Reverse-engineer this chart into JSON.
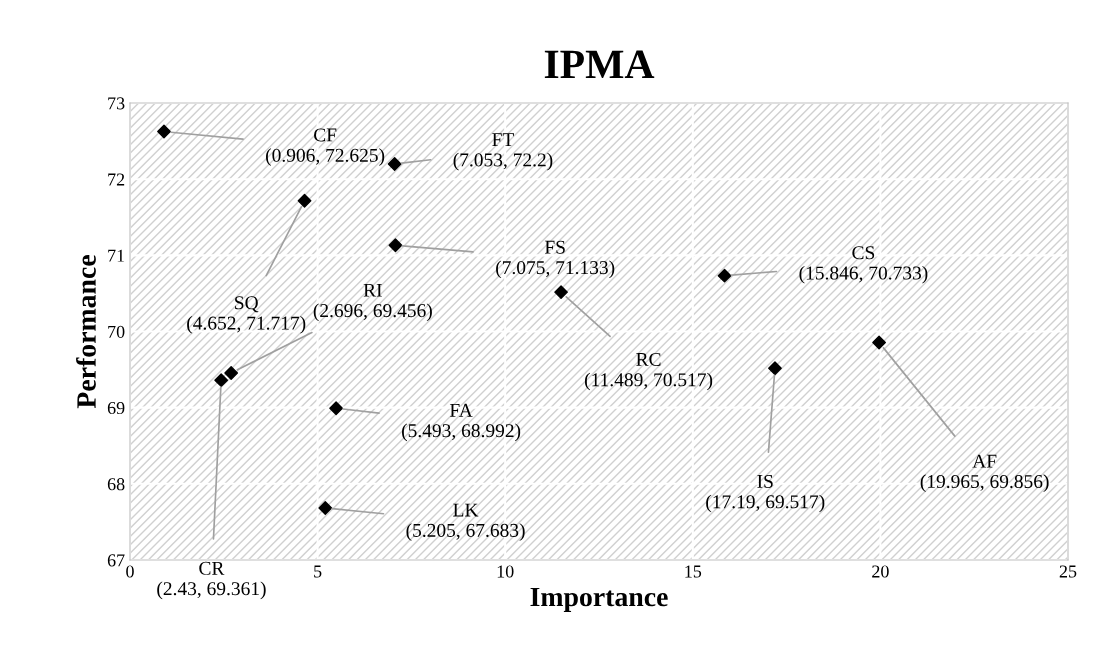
{
  "chart_data": {
    "type": "scatter",
    "title": "IPMA",
    "xlabel": "Importance",
    "ylabel": "Performance",
    "x": [
      0.906,
      7.053,
      4.652,
      7.075,
      15.846,
      11.489,
      2.696,
      2.43,
      5.493,
      17.19,
      19.965,
      5.205
    ],
    "series": [
      {
        "color": "#000000",
        "values": [
          72.625,
          72.2,
          71.717,
          71.133,
          70.733,
          70.517,
          69.456,
          69.361,
          68.992,
          69.517,
          69.856,
          67.683
        ]
      }
    ],
    "xlim": [
      0,
      25
    ],
    "xticks": [
      0,
      5,
      10,
      15,
      20,
      25
    ],
    "ylim": [
      67,
      73
    ],
    "yticks": [
      67,
      68,
      69,
      70,
      71,
      72,
      73
    ],
    "grid": true,
    "legend": false,
    "marker": "diamond",
    "annotations": [
      {
        "text": "CF\n(0.906, 72.625)",
        "x": 0.906,
        "y": 72.625
      },
      {
        "text": "FT\n(7.053, 72.2)",
        "x": 7.053,
        "y": 72.2
      },
      {
        "text": "SQ\n(4.652, 71.717)",
        "x": 4.652,
        "y": 71.717
      },
      {
        "text": "FS\n(7.075, 71.133)",
        "x": 7.075,
        "y": 71.133
      },
      {
        "text": "CS\n(15.846, 70.733)",
        "x": 15.846,
        "y": 70.733
      },
      {
        "text": "RC\n(11.489, 70.517)",
        "x": 11.489,
        "y": 70.517
      },
      {
        "text": "RI\n(2.696, 69.456)",
        "x": 2.696,
        "y": 69.456
      },
      {
        "text": "CR\n(2.43, 69.361)",
        "x": 2.43,
        "y": 69.361
      },
      {
        "text": "FA\n(5.493, 68.992)",
        "x": 5.493,
        "y": 68.992
      },
      {
        "text": "IS\n(17.19, 69.517)",
        "x": 17.19,
        "y": 69.517
      },
      {
        "text": "AF\n(19.965, 69.856)",
        "x": 19.965,
        "y": 69.856
      },
      {
        "text": "LK\n(5.205, 67.683)",
        "x": 5.205,
        "y": 67.683
      }
    ]
  }
}
